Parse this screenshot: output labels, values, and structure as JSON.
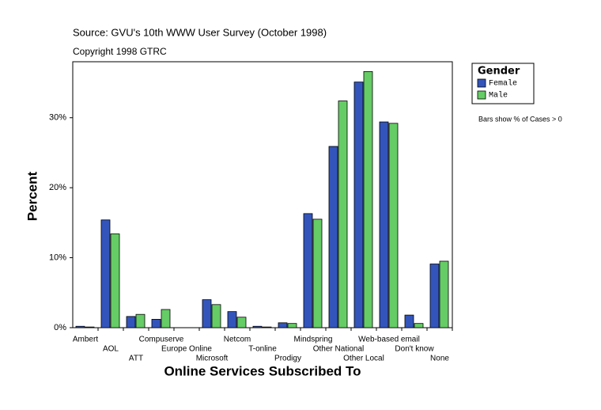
{
  "chart_data": {
    "type": "bar",
    "subtitle": "Source: GVU's 10th WWW User Survey (October 1998)",
    "copyright": "Copyright 1998 GTRC",
    "x_label": "Online Services Subscribed To",
    "y_label": "Percent",
    "note": "Bars show % of Cases > 0",
    "legend_title": "Gender",
    "legend_position": "right",
    "categories": [
      "Ambert",
      "AOL",
      "ATT",
      "Compuserve",
      "Europe Online",
      "Microsoft",
      "Netcom",
      "T-online",
      "Prodigy",
      "Mindspring",
      "Other National",
      "Other Local",
      "Web-based email",
      "Don't know",
      "None"
    ],
    "series": [
      {
        "name": "Female",
        "color": "#3355bb",
        "values": [
          0.2,
          15.4,
          1.6,
          1.2,
          0,
          4.0,
          2.3,
          0.2,
          0.7,
          16.3,
          25.9,
          35.1,
          29.4,
          1.8,
          9.1
        ]
      },
      {
        "name": "Male",
        "color": "#66cc66",
        "values": [
          0.1,
          13.4,
          1.9,
          2.6,
          0,
          3.3,
          1.5,
          0.1,
          0.6,
          15.5,
          32.4,
          36.6,
          29.2,
          0.6,
          9.5
        ]
      }
    ],
    "ylim": [
      0,
      38
    ],
    "yticks": [
      {
        "value": 0,
        "label": "0%"
      },
      {
        "value": 10,
        "label": "10%"
      },
      {
        "value": 20,
        "label": "20%"
      },
      {
        "value": 30,
        "label": "30%"
      }
    ]
  }
}
